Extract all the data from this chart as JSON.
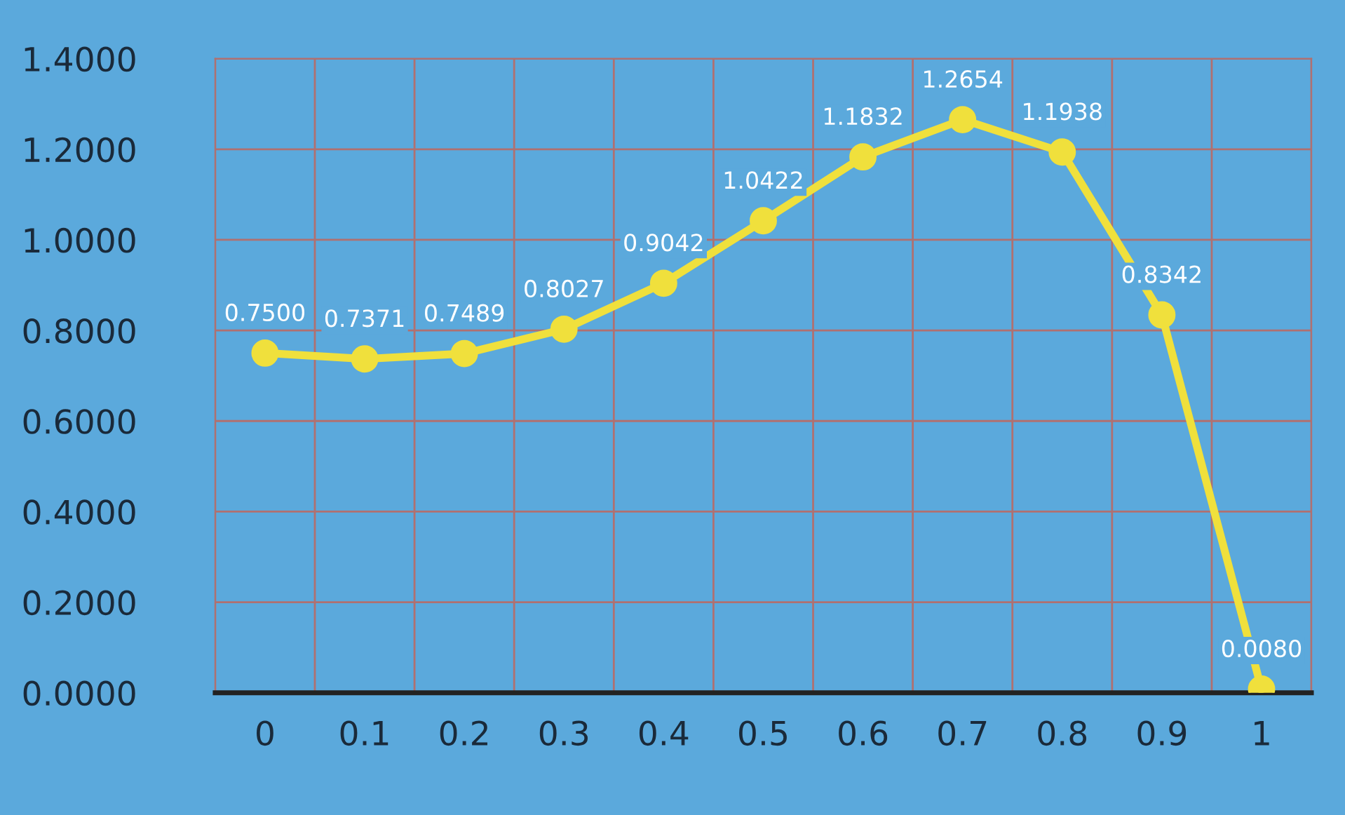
{
  "chart_data": {
    "type": "line",
    "categories": [
      "0",
      "0.1",
      "0.2",
      "0.3",
      "0.4",
      "0.5",
      "0.6",
      "0.7",
      "0.8",
      "0.9",
      "1"
    ],
    "series": [
      {
        "color": "#f0e03c",
        "values": [
          0.75,
          0.7371,
          0.7489,
          0.8027,
          0.9042,
          1.0422,
          1.1832,
          1.2654,
          1.1938,
          0.8342,
          0.008
        ],
        "value_labels": [
          "0.7500",
          "0.7371",
          "0.7489",
          "0.8027",
          "0.9042",
          "1.0422",
          "1.1832",
          "1.2654",
          "1.1938",
          "0.8342",
          "0.0080"
        ]
      }
    ],
    "ylim": [
      0,
      1.4
    ],
    "yticks": [
      {
        "value": 0,
        "label": "0.0000"
      },
      {
        "value": 0.2,
        "label": "0.2000"
      },
      {
        "value": 0.4,
        "label": "0.4000"
      },
      {
        "value": 0.6,
        "label": "0.6000"
      },
      {
        "value": 0.8,
        "label": "0.8000"
      },
      {
        "value": 1.0,
        "label": "1.0000"
      },
      {
        "value": 1.2,
        "label": "1.2000"
      },
      {
        "value": 1.4,
        "label": "1.4000"
      }
    ],
    "grid": true,
    "marker": "circle",
    "line_style": "solid"
  }
}
